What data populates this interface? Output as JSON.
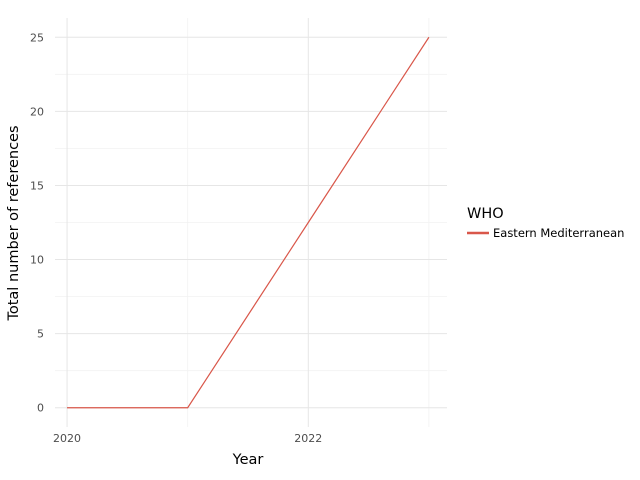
{
  "chart_data": {
    "type": "line",
    "xlabel": "Year",
    "ylabel": "Total number of references",
    "x": [
      2020,
      2021,
      2022,
      2023
    ],
    "series": [
      {
        "name": "Eastern Mediterranean",
        "values": [
          0,
          0,
          12.5,
          25
        ],
        "color": "#d9574a"
      }
    ],
    "x_ticks": [
      2020,
      2022
    ],
    "y_ticks": [
      0,
      5,
      10,
      15,
      20,
      25
    ],
    "xlim": [
      2019.9,
      2023.15
    ],
    "ylim": [
      -1.3,
      26.3
    ],
    "grid": true,
    "legend": {
      "title": "WHO",
      "placement": "right"
    }
  }
}
